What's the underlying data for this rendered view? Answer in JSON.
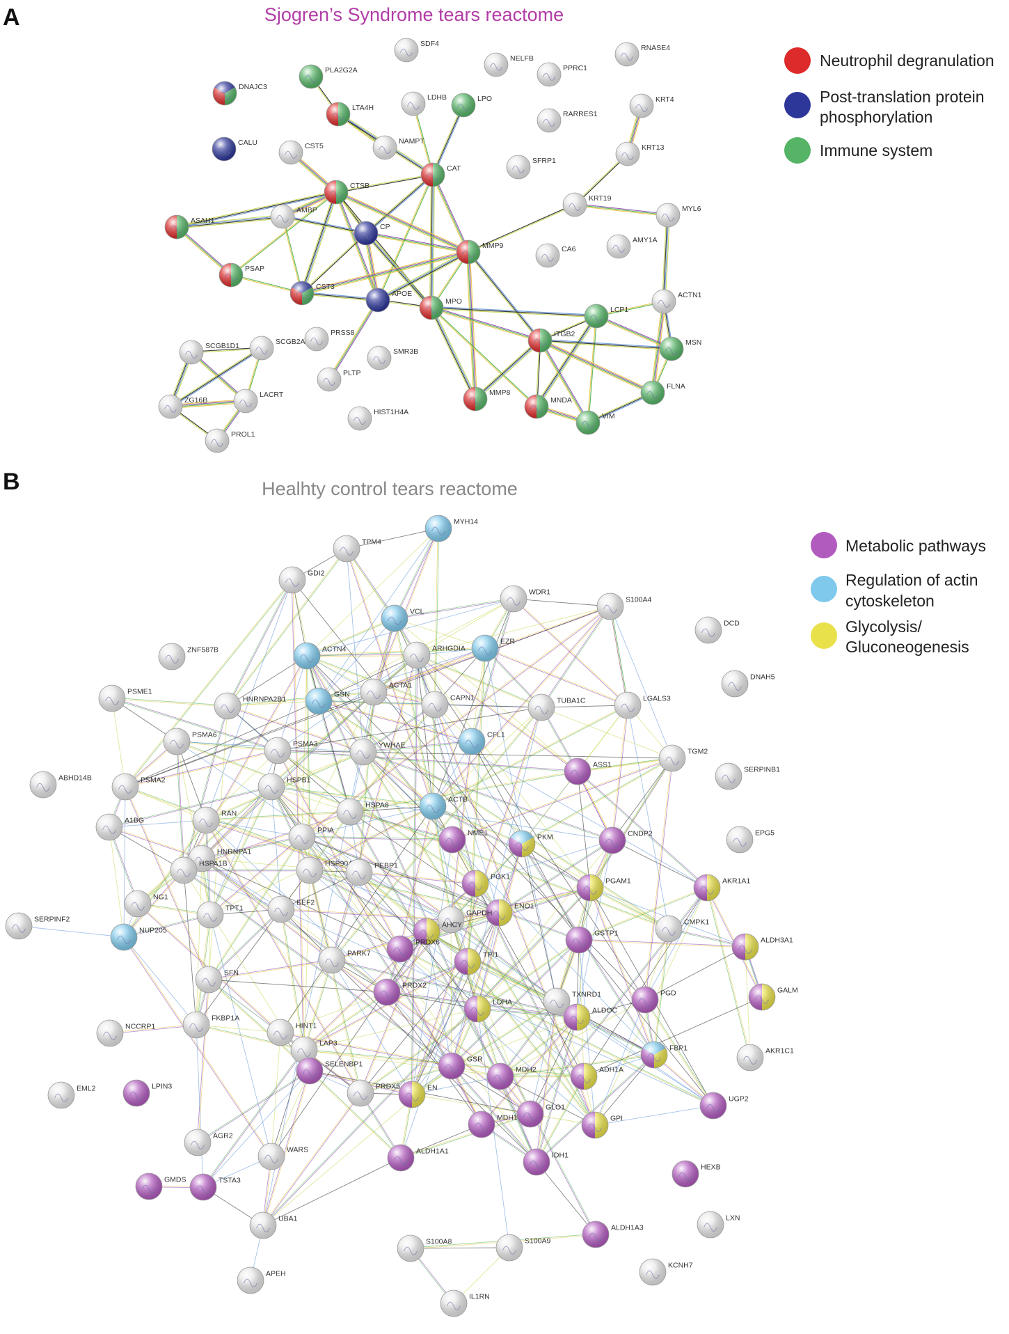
{
  "panel_a": {
    "letter": "A",
    "title": "Sjogren’s Syndrome tears reactome",
    "legend": [
      {
        "label": "Neutrophil degranulation",
        "color": "#dd2a2a"
      },
      {
        "label": "Post-translation protein phosphorylation",
        "color": "#2d3699"
      },
      {
        "label": "Immune system",
        "color": "#55b466"
      }
    ],
    "nodes": [
      "DNAJC3",
      "CALU",
      "PLA2G2A",
      "LTA4H",
      "SDF4",
      "NELFB",
      "PPRC1",
      "RNASE4",
      "LDHB",
      "LPO",
      "NAMPT",
      "RARRES1",
      "KRT4",
      "KRT13",
      "CST5",
      "CAT",
      "SFRP1",
      "CTSB",
      "ASAH1",
      "AMBP",
      "CP",
      "KRT19",
      "MYL6",
      "MMP9",
      "CA6",
      "AMY1A",
      "PSAP",
      "CST3",
      "APOE",
      "MPO",
      "ACTN1",
      "LCP1",
      "ITGB2",
      "MSN",
      "SCGB1D1",
      "SCGB2A1",
      "PRSS8",
      "SMR3B",
      "PLTP",
      "LACRT",
      "ZG16B",
      "PROL1",
      "HIST1H4A",
      "MMP8",
      "MNDA",
      "VIM",
      "FLNA"
    ]
  },
  "panel_b": {
    "letter": "B",
    "title": "Healhty control tears reactome",
    "legend": [
      {
        "label": "Metabolic pathways",
        "color": "#b25bbf"
      },
      {
        "label": "Regulation of actin cytoskeleton",
        "color": "#7ec9ec"
      },
      {
        "label": "Glycolysis/ Gluconeogenesis",
        "color": "#e9e14a"
      }
    ],
    "nodes": [
      "MYH14",
      "TPM4",
      "GDI2",
      "WDR1",
      "S100A4",
      "DCD",
      "VCL",
      "ARHGDIA",
      "EZR",
      "ACTN4",
      "ZNF587B",
      "DNAH5",
      "PSME1",
      "HNRNPA2B1",
      "GSN",
      "ACTA1",
      "CAPN1",
      "TUBA1C",
      "LGALS3",
      "PSMA6",
      "PSMA3",
      "YWHAE",
      "CFL1",
      "TGM2",
      "ABHD14B",
      "PSMA2",
      "HSPB1",
      "ASS1",
      "SERPINB1",
      "A1BG",
      "RAN",
      "HSPA8",
      "ACTB",
      "NME1",
      "PKM",
      "CNDP2",
      "EPG5",
      "HNRNPA1",
      "PPIA",
      "HSP90AA1",
      "PEBP1",
      "PGK1",
      "PGAM1",
      "AKR1A1",
      "HSPA1B",
      "NG1",
      "TPT1",
      "EEF2",
      "ENO1",
      "CMPK1",
      "ALDH3A1",
      "SERPINF2",
      "GAPDH",
      "AHCY",
      "TPI1",
      "GSTP1",
      "PARK7",
      "PRDX6",
      "NUP205",
      "SFN",
      "PRDX2",
      "LDHA",
      "TXNRD1",
      "PGD",
      "GALM",
      "ALDOC",
      "FKBP1A",
      "HINT1",
      "NCCRP1",
      "FBP1",
      "AKR1C1",
      "LAP3",
      "GSR",
      "MDH2",
      "ADH1A",
      "EML2",
      "LPIN3",
      "SELENBP1",
      "PRDX5",
      "EN",
      "UGP2",
      "MDH1",
      "GLO1",
      "GPI",
      "AGR2",
      "WARS",
      "ALDH1A1",
      "IDH1",
      "HEXB",
      "GMDS",
      "TSTA3",
      "LXN",
      "UBA1",
      "ALDH1A3",
      "S100A8",
      "S100A9",
      "KCNH7",
      "APEH",
      "IL1RN"
    ]
  }
}
